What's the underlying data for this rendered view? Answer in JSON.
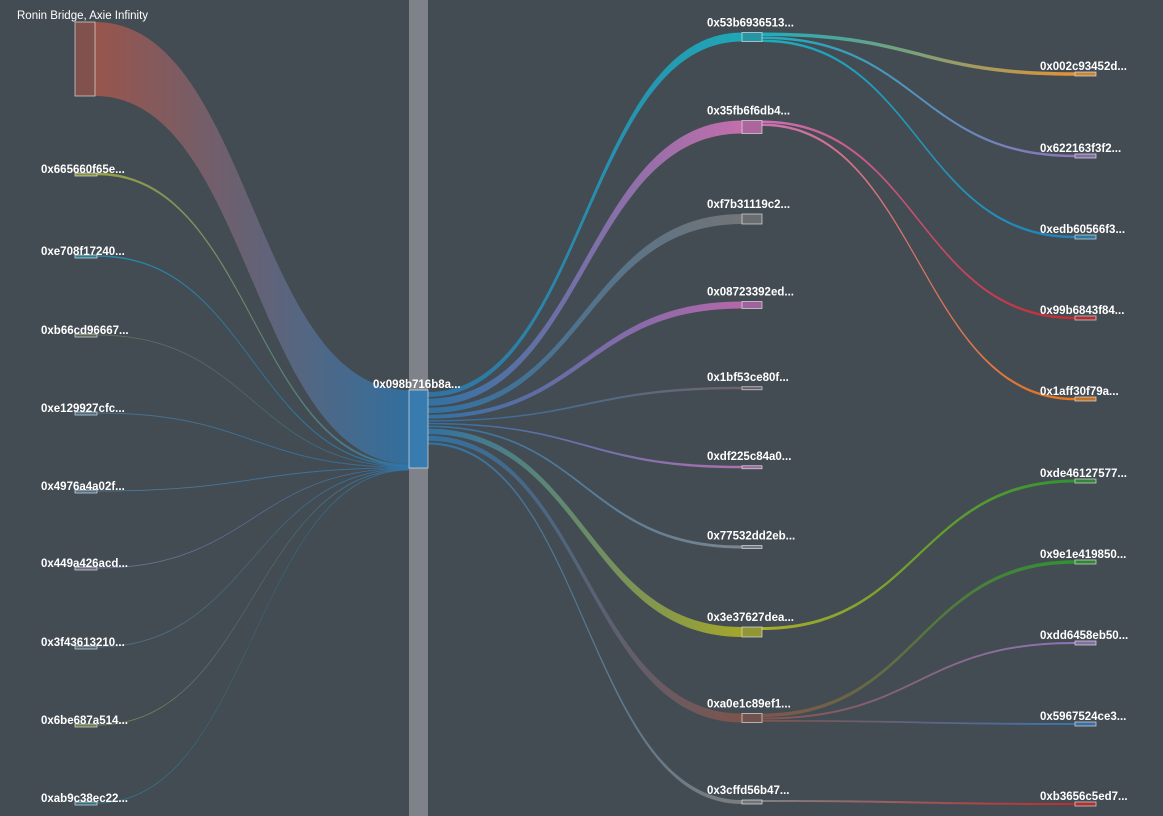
{
  "source": {
    "label": "Ronin Bridge, Axie Infinity",
    "color": "#b5584a"
  },
  "hub": {
    "label": "0x098b716b8a...",
    "color": "#2c7bb6"
  },
  "left_nodes": [
    {
      "label": "0x665660f65e...",
      "color": "#b5bd3a"
    },
    {
      "label": "0xe708f17240...",
      "color": "#1f9fc4"
    },
    {
      "label": "0xb66cd96667...",
      "color": "#6b7b52"
    },
    {
      "label": "0xe129927cfc...",
      "color": "#4c7fa3"
    },
    {
      "label": "0x4976a4a02f...",
      "color": "#5a8aa8"
    },
    {
      "label": "0x449a426acd...",
      "color": "#8a7fa8"
    },
    {
      "label": "0x3f43613210...",
      "color": "#5e7e8c"
    },
    {
      "label": "0x6be687a514...",
      "color": "#8a9b4a"
    },
    {
      "label": "0xab9c38ec22...",
      "color": "#2b8a9b"
    }
  ],
  "mid_nodes": [
    {
      "label": "0x53b6936513...",
      "color": "#17becf"
    },
    {
      "label": "0x35fb6f6db4...",
      "color": "#e377c2"
    },
    {
      "label": "0xf7b31119c2...",
      "color": "#7f7f7f"
    },
    {
      "label": "0x08723392ed...",
      "color": "#d16fc0"
    },
    {
      "label": "0x1bf53ce80f...",
      "color": "#7a6a74"
    },
    {
      "label": "0xdf225c84a0...",
      "color": "#c77ac7"
    },
    {
      "label": "0x77532dd2eb...",
      "color": "#8a949c"
    },
    {
      "label": "0x3e37627dea...",
      "color": "#bcbd22"
    },
    {
      "label": "0xa0e1c89ef1...",
      "color": "#8c564b"
    },
    {
      "label": "0x3cffd56b47...",
      "color": "#8a8a8a"
    }
  ],
  "right_nodes": [
    {
      "label": "0x002c93452d...",
      "color": "#ff9f2e"
    },
    {
      "label": "0x622163f3f2...",
      "color": "#9d7cc9"
    },
    {
      "label": "0xedb60566f3...",
      "color": "#1f8bc8"
    },
    {
      "label": "0x99b6843f84...",
      "color": "#d62728"
    },
    {
      "label": "0x1aff30f79a...",
      "color": "#ff7f0e"
    },
    {
      "label": "0xde46127577...",
      "color": "#2ca02c"
    },
    {
      "label": "0x9e1e419850...",
      "color": "#2ca02c"
    },
    {
      "label": "0xdd6458eb50...",
      "color": "#9d7cc9"
    },
    {
      "label": "0x5967524ce3...",
      "color": "#3b7dc4"
    },
    {
      "label": "0xb3656c5ed7...",
      "color": "#d62728"
    }
  ]
}
